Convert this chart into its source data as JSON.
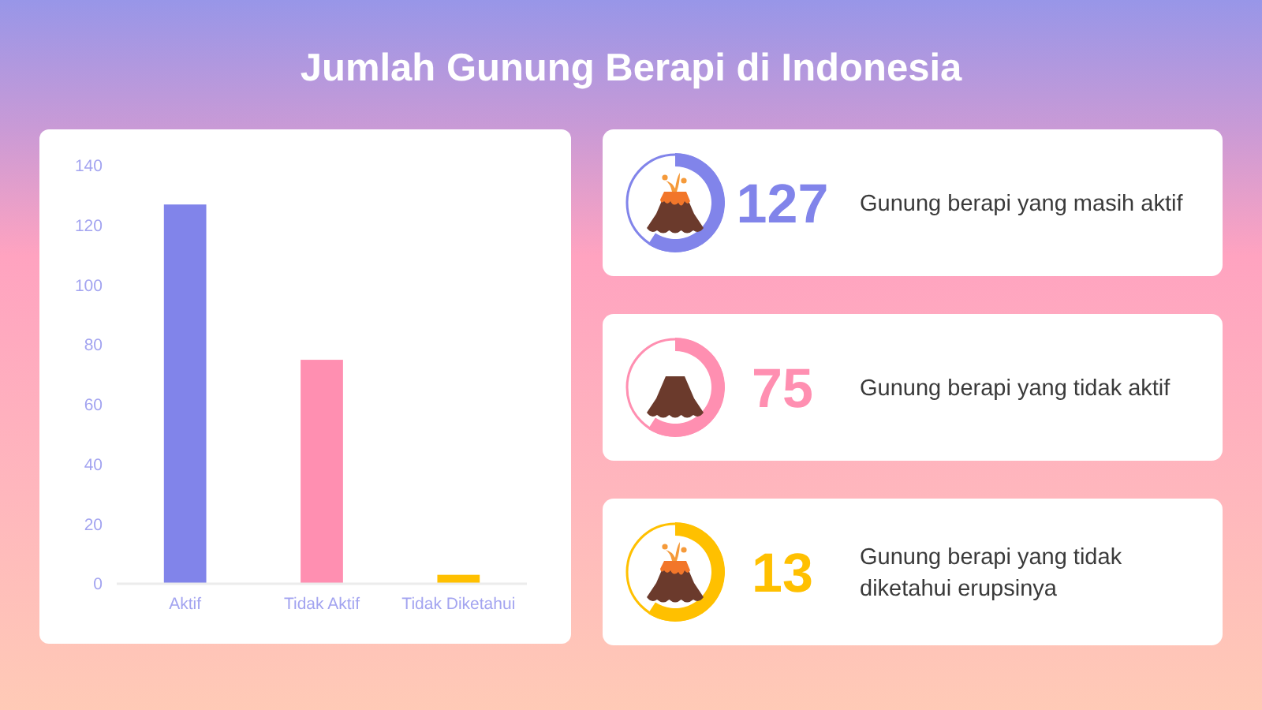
{
  "chart_data": [
    {
      "type": "bar",
      "title": "Jumlah Gunung Berapi di Indonesia",
      "categories": [
        "Aktif",
        "Tidak Aktif",
        "Tidak Diketahui"
      ],
      "values": [
        127,
        75,
        3
      ],
      "colors": [
        "#8184ea",
        "#ff8fb1",
        "#ffc000"
      ],
      "ylim": [
        0,
        140
      ],
      "yticks": [
        0,
        20,
        40,
        60,
        80,
        100,
        120,
        140
      ]
    },
    {
      "type": "other",
      "categories": [
        "Gunung berapi yang masih aktif",
        "Gunung berapi yang tidak aktif",
        "Gunung berapi yang tidak diketahui erupsinya"
      ],
      "values": [
        127,
        75,
        13
      ],
      "data_labels": true
    }
  ]
}
